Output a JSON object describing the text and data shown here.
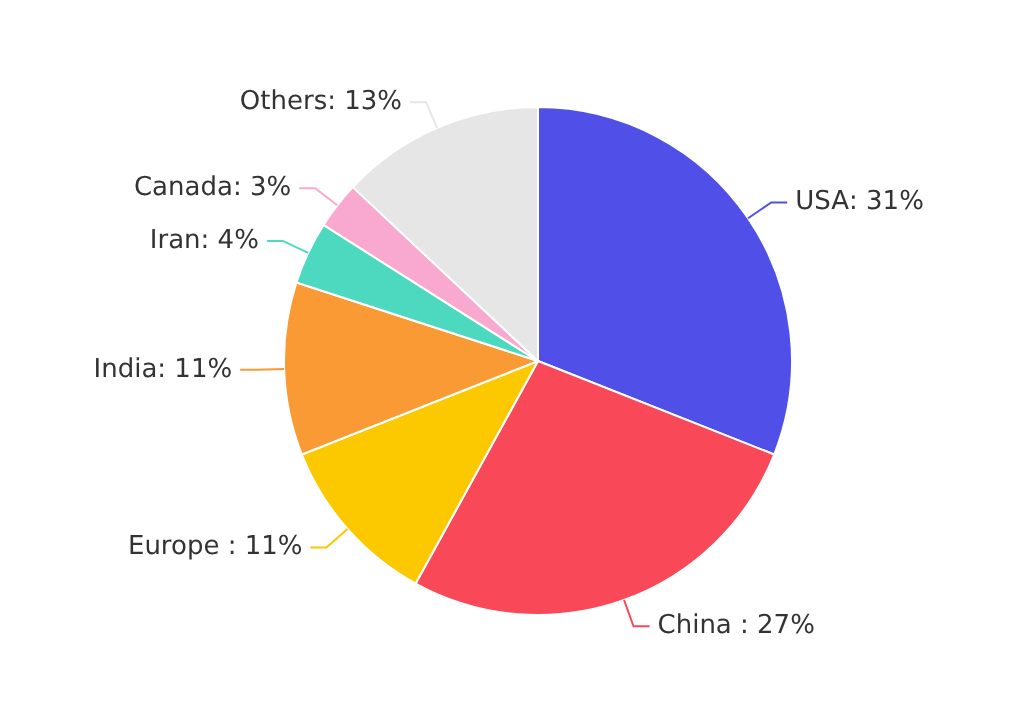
{
  "chart_data": {
    "type": "pie",
    "categories": [
      "USA",
      "China ",
      "Europe ",
      "India",
      "Iran",
      "Canada",
      "Others"
    ],
    "values": [
      31,
      27,
      11,
      11,
      4,
      3,
      13
    ],
    "colors": [
      "#5050e8",
      "#f94857",
      "#fcc800",
      "#fa9a35",
      "#4dd9c0",
      "#f9a8d0",
      "#e6e6e6"
    ],
    "value_labels": [
      ": 31%",
      ": 27%",
      ": 11%",
      ": 11%",
      ": 4%",
      ": 3%",
      ": 13%"
    ],
    "legend": false
  }
}
